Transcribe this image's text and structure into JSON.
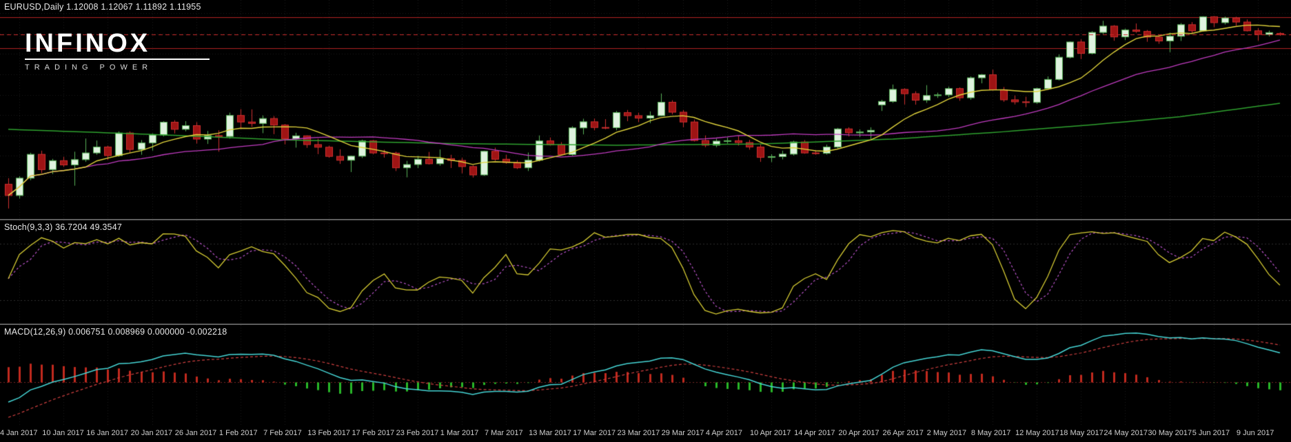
{
  "header": {
    "symbol_line": "EURUSD,Daily  1.12008 1.12067 1.11892 1.11955"
  },
  "logo": {
    "name": "INFINOX",
    "tagline": "TRADING POWER"
  },
  "panels": {
    "stoch_label": "Stoch(9,3,3) 36.7204 49.3547",
    "macd_label": "MACD(12,26,9) 0.006751 0.008969 0.000000 -0.002218"
  },
  "colors": {
    "background": "#000000",
    "grid": "#1e1e1e",
    "separator": "#5e5e5e",
    "text": "#e8e8e8",
    "axis_text": "#cfcfcf",
    "up_fill": "#dff3df",
    "up_border": "#58b258",
    "down_fill": "#9e1414",
    "down_border": "#d03030",
    "level_line": "#b22222",
    "price_line": "#cc2a2a",
    "ma_fast": "#e3d63c",
    "ma_medium": "#c23cc2",
    "ma_slow": "#2fa32f",
    "stoch_main": "#d6cc33",
    "stoch_signal": "#bb55cc",
    "stoch_level": "#2e2e2e",
    "macd_line": "#46d7d7",
    "macd_signal": "#d04040",
    "macd_zero": "#7a2424",
    "hist_pos": "#c22a1e",
    "hist_neg": "#28b828"
  },
  "chart_data": {
    "type": "candlestick",
    "symbol": "EURUSD",
    "timeframe": "Daily",
    "current_bar": {
      "open": 1.12008,
      "high": 1.12067,
      "low": 1.11892,
      "close": 1.11955
    },
    "y_range": [
      1.031,
      1.1345
    ],
    "levels": [
      1.128,
      1.113
    ],
    "price_line": 1.11955,
    "dates": [
      "2017-01-03",
      "2017-01-04",
      "2017-01-05",
      "2017-01-06",
      "2017-01-09",
      "2017-01-10",
      "2017-01-11",
      "2017-01-12",
      "2017-01-13",
      "2017-01-16",
      "2017-01-17",
      "2017-01-18",
      "2017-01-19",
      "2017-01-20",
      "2017-01-23",
      "2017-01-24",
      "2017-01-25",
      "2017-01-26",
      "2017-01-27",
      "2017-01-30",
      "2017-01-31",
      "2017-02-01",
      "2017-02-02",
      "2017-02-03",
      "2017-02-06",
      "2017-02-07",
      "2017-02-08",
      "2017-02-09",
      "2017-02-10",
      "2017-02-13",
      "2017-02-14",
      "2017-02-15",
      "2017-02-16",
      "2017-02-17",
      "2017-02-20",
      "2017-02-21",
      "2017-02-22",
      "2017-02-23",
      "2017-02-24",
      "2017-02-27",
      "2017-02-28",
      "2017-03-01",
      "2017-03-02",
      "2017-03-03",
      "2017-03-06",
      "2017-03-07",
      "2017-03-08",
      "2017-03-09",
      "2017-03-10",
      "2017-03-13",
      "2017-03-14",
      "2017-03-15",
      "2017-03-16",
      "2017-03-17",
      "2017-03-20",
      "2017-03-21",
      "2017-03-22",
      "2017-03-23",
      "2017-03-24",
      "2017-03-27",
      "2017-03-28",
      "2017-03-29",
      "2017-03-30",
      "2017-03-31",
      "2017-04-03",
      "2017-04-04",
      "2017-04-05",
      "2017-04-06",
      "2017-04-07",
      "2017-04-10",
      "2017-04-11",
      "2017-04-12",
      "2017-04-13",
      "2017-04-14",
      "2017-04-17",
      "2017-04-18",
      "2017-04-19",
      "2017-04-20",
      "2017-04-21",
      "2017-04-24",
      "2017-04-25",
      "2017-04-26",
      "2017-04-27",
      "2017-04-28",
      "2017-05-01",
      "2017-05-02",
      "2017-05-03",
      "2017-05-04",
      "2017-05-05",
      "2017-05-08",
      "2017-05-09",
      "2017-05-10",
      "2017-05-11",
      "2017-05-12",
      "2017-05-15",
      "2017-05-16",
      "2017-05-17",
      "2017-05-18",
      "2017-05-19",
      "2017-05-22",
      "2017-05-23",
      "2017-05-24",
      "2017-05-25",
      "2017-05-26",
      "2017-05-29",
      "2017-05-30",
      "2017-05-31",
      "2017-06-01",
      "2017-06-02",
      "2017-06-05",
      "2017-06-06",
      "2017-06-07",
      "2017-06-08",
      "2017-06-09",
      "2017-06-12",
      "2017-06-13"
    ],
    "open": [
      1.046,
      1.0405,
      1.049,
      1.0607,
      1.0532,
      1.0576,
      1.0555,
      1.0581,
      1.0614,
      1.0643,
      1.0601,
      1.0712,
      1.0631,
      1.0663,
      1.0702,
      1.0765,
      1.073,
      1.0748,
      1.0682,
      1.0699,
      1.0695,
      1.0798,
      1.0766,
      1.0759,
      1.0783,
      1.0751,
      1.0684,
      1.0698,
      1.0655,
      1.0642,
      1.0597,
      1.0578,
      1.0598,
      1.0673,
      1.0614,
      1.0613,
      1.0541,
      1.0557,
      1.0583,
      1.0561,
      1.0586,
      1.0577,
      1.0547,
      1.0506,
      1.0622,
      1.0583,
      1.0567,
      1.0541,
      1.0578,
      1.0673,
      1.0654,
      1.0606,
      1.0737,
      1.0767,
      1.0739,
      1.0738,
      1.0812,
      1.0797,
      1.0785,
      1.0797,
      1.0863,
      1.0814,
      1.0766,
      1.0675,
      1.0652,
      1.0672,
      1.0674,
      1.0665,
      1.0643,
      1.0592,
      1.0596,
      1.0608,
      1.0668,
      1.0614,
      1.0612,
      1.0643,
      1.0732,
      1.0713,
      1.0717,
      1.085,
      1.0867,
      1.0926,
      1.0905,
      1.0873,
      1.0896,
      1.0899,
      1.093,
      1.0885,
      1.0983,
      1.0998,
      1.0924,
      1.0875,
      1.0865,
      1.0862,
      1.093,
      1.0975,
      1.1084,
      1.1159,
      1.1103,
      1.1206,
      1.1237,
      1.1184,
      1.1218,
      1.1211,
      1.1183,
      1.1164,
      1.1187,
      1.1244,
      1.1214,
      1.1283,
      1.1254,
      1.1277,
      1.1257,
      1.1214,
      1.1196,
      1.12008
    ],
    "high": [
      1.049,
      1.05,
      1.0615,
      1.0625,
      1.0585,
      1.0595,
      1.062,
      1.0685,
      1.0675,
      1.065,
      1.072,
      1.072,
      1.0677,
      1.071,
      1.077,
      1.0775,
      1.077,
      1.0765,
      1.0722,
      1.0725,
      1.0812,
      1.0829,
      1.0828,
      1.0798,
      1.0795,
      1.0756,
      1.0713,
      1.07,
      1.0684,
      1.065,
      1.0632,
      1.0601,
      1.0679,
      1.0678,
      1.063,
      1.062,
      1.0575,
      1.06,
      1.0619,
      1.0631,
      1.0605,
      1.059,
      1.0553,
      1.0625,
      1.064,
      1.0605,
      1.0578,
      1.0616,
      1.07,
      1.069,
      1.0667,
      1.0745,
      1.0782,
      1.0783,
      1.078,
      1.082,
      1.0825,
      1.0812,
      1.0818,
      1.0906,
      1.0873,
      1.0825,
      1.0778,
      1.07,
      1.0684,
      1.069,
      1.0697,
      1.0678,
      1.0655,
      1.0608,
      1.0625,
      1.0674,
      1.0677,
      1.0627,
      1.0655,
      1.0737,
      1.074,
      1.073,
      1.074,
      1.0875,
      1.095,
      1.0932,
      1.0917,
      1.0947,
      1.091,
      1.094,
      1.0936,
      1.099,
      1.1002,
      1.1023,
      1.0938,
      1.0896,
      1.089,
      1.0935,
      1.099,
      1.1098,
      1.1162,
      1.1172,
      1.1212,
      1.1263,
      1.1242,
      1.1225,
      1.125,
      1.1218,
      1.119,
      1.1205,
      1.1252,
      1.1257,
      1.1285,
      1.1286,
      1.1284,
      1.1283,
      1.127,
      1.1227,
      1.1215,
      1.12067
    ],
    "low": [
      1.0341,
      1.039,
      1.048,
      1.0515,
      1.051,
      1.0545,
      1.0453,
      1.057,
      1.0605,
      1.058,
      1.0595,
      1.0615,
      1.0605,
      1.0625,
      1.0695,
      1.071,
      1.072,
      1.066,
      1.0658,
      1.062,
      1.0684,
      1.0732,
      1.0742,
      1.0711,
      1.0706,
      1.0656,
      1.064,
      1.0639,
      1.0608,
      1.059,
      1.056,
      1.052,
      1.0589,
      1.0608,
      1.0591,
      1.0525,
      1.0494,
      1.054,
      1.0557,
      1.0551,
      1.054,
      1.0514,
      1.0493,
      1.0501,
      1.0575,
      1.056,
      1.0535,
      1.0525,
      1.0572,
      1.065,
      1.06,
      1.06,
      1.0705,
      1.0725,
      1.073,
      1.0725,
      1.077,
      1.0765,
      1.076,
      1.0795,
      1.0803,
      1.074,
      1.067,
      1.0642,
      1.0642,
      1.066,
      1.065,
      1.063,
      1.057,
      1.0569,
      1.0582,
      1.0601,
      1.061,
      1.0605,
      1.0606,
      1.0635,
      1.0695,
      1.0692,
      1.0682,
      1.082,
      1.086,
      1.0852,
      1.0851,
      1.086,
      1.0884,
      1.0888,
      1.087,
      1.0875,
      1.0956,
      1.092,
      1.0865,
      1.0852,
      1.0839,
      1.0855,
      1.0925,
      1.097,
      1.1078,
      1.1075,
      1.1098,
      1.1198,
      1.1165,
      1.1168,
      1.1204,
      1.116,
      1.115,
      1.1109,
      1.1164,
      1.1201,
      1.121,
      1.1232,
      1.1245,
      1.1239,
      1.1211,
      1.1165,
      1.1186,
      1.11892
    ],
    "close": [
      1.0405,
      1.049,
      1.0607,
      1.0532,
      1.0576,
      1.0555,
      1.0581,
      1.0614,
      1.0643,
      1.0601,
      1.0712,
      1.0631,
      1.0663,
      1.0702,
      1.0765,
      1.073,
      1.0748,
      1.0682,
      1.0699,
      1.0695,
      1.0798,
      1.0766,
      1.0759,
      1.0783,
      1.0751,
      1.0684,
      1.0698,
      1.0655,
      1.0642,
      1.0597,
      1.0578,
      1.0598,
      1.0673,
      1.0614,
      1.0613,
      1.0541,
      1.0557,
      1.0583,
      1.0561,
      1.0586,
      1.0577,
      1.0547,
      1.0506,
      1.0622,
      1.0583,
      1.0567,
      1.0541,
      1.0578,
      1.0673,
      1.0654,
      1.0606,
      1.0737,
      1.0767,
      1.0739,
      1.0738,
      1.0812,
      1.0797,
      1.0785,
      1.0797,
      1.0863,
      1.0814,
      1.0766,
      1.0675,
      1.0652,
      1.0672,
      1.0674,
      1.0665,
      1.0643,
      1.0592,
      1.0596,
      1.0608,
      1.0668,
      1.0614,
      1.0612,
      1.0643,
      1.0732,
      1.0713,
      1.0717,
      1.0725,
      1.0867,
      1.0926,
      1.0905,
      1.0873,
      1.0896,
      1.0899,
      1.093,
      1.0885,
      1.0983,
      1.0998,
      1.0924,
      1.0875,
      1.0865,
      1.0862,
      1.093,
      1.0975,
      1.1084,
      1.1159,
      1.1103,
      1.1206,
      1.1237,
      1.1184,
      1.1218,
      1.1211,
      1.1183,
      1.1164,
      1.1187,
      1.1244,
      1.1214,
      1.1283,
      1.1254,
      1.1277,
      1.1257,
      1.1214,
      1.1196,
      1.1205,
      1.11955
    ],
    "moving_averages": [
      {
        "name": "slow",
        "type": "points",
        "color_key": "ma_slow",
        "width": 1.5,
        "points": [
          [
            0,
            1.073
          ],
          [
            12,
            1.0707
          ],
          [
            25,
            1.0678
          ],
          [
            40,
            1.066
          ],
          [
            55,
            1.0652
          ],
          [
            68,
            1.0658
          ],
          [
            80,
            1.0682
          ],
          [
            90,
            1.0718
          ],
          [
            98,
            1.0752
          ],
          [
            106,
            1.0792
          ],
          [
            115,
            1.0858
          ]
        ]
      },
      {
        "name": "medium",
        "type": "sma",
        "period": 24,
        "color_key": "ma_medium",
        "width": 1.3
      },
      {
        "name": "fast",
        "type": "sma",
        "period": 8,
        "color_key": "ma_fast",
        "width": 1.4
      }
    ],
    "indicators": {
      "stochastic": {
        "label": "Stoch(9,3,3)",
        "k_period": 9,
        "slowing": 3,
        "d_period": 3,
        "current_main": 36.7204,
        "current_signal": 49.3547,
        "level_high": 80,
        "level_low": 20
      },
      "macd": {
        "label": "MACD(12,26,9)",
        "fast": 12,
        "slow": 26,
        "signal": 9,
        "current_macd": 0.006751,
        "current_signal": 0.008969,
        "zero_level": 0.0,
        "current_histogram": -0.002218
      }
    },
    "x_axis_labels": [
      {
        "index": 1,
        "label": "4 Jan 2017"
      },
      {
        "index": 5,
        "label": "10 Jan 2017"
      },
      {
        "index": 9,
        "label": "16 Jan 2017"
      },
      {
        "index": 13,
        "label": "20 Jan 2017"
      },
      {
        "index": 17,
        "label": "26 Jan 2017"
      },
      {
        "index": 21,
        "label": "1 Feb 2017"
      },
      {
        "index": 25,
        "label": "7 Feb 2017"
      },
      {
        "index": 29,
        "label": "13 Feb 2017"
      },
      {
        "index": 33,
        "label": "17 Feb 2017"
      },
      {
        "index": 37,
        "label": "23 Feb 2017"
      },
      {
        "index": 41,
        "label": "1 Mar 2017"
      },
      {
        "index": 45,
        "label": "7 Mar 2017"
      },
      {
        "index": 49,
        "label": "13 Mar 2017"
      },
      {
        "index": 53,
        "label": "17 Mar 2017"
      },
      {
        "index": 57,
        "label": "23 Mar 2017"
      },
      {
        "index": 61,
        "label": "29 Mar 2017"
      },
      {
        "index": 65,
        "label": "4 Apr 2017"
      },
      {
        "index": 69,
        "label": "10 Apr 2017"
      },
      {
        "index": 73,
        "label": "14 Apr 2017"
      },
      {
        "index": 77,
        "label": "20 Apr 2017"
      },
      {
        "index": 81,
        "label": "26 Apr 2017"
      },
      {
        "index": 85,
        "label": "2 May 2017"
      },
      {
        "index": 89,
        "label": "8 May 2017"
      },
      {
        "index": 93,
        "label": "12 May 2017"
      },
      {
        "index": 97,
        "label": "18 May 2017"
      },
      {
        "index": 101,
        "label": "24 May 2017"
      },
      {
        "index": 105,
        "label": "30 May 2017"
      },
      {
        "index": 109,
        "label": "5 Jun 2017"
      },
      {
        "index": 113,
        "label": "9 Jun 2017"
      }
    ]
  }
}
